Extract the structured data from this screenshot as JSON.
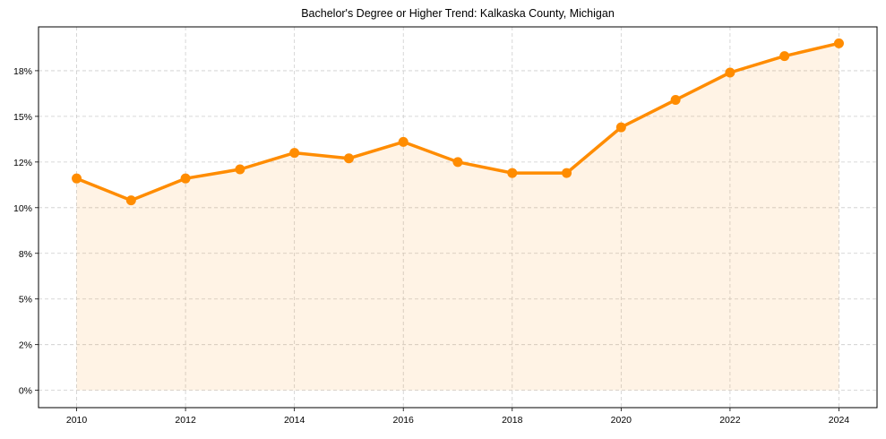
{
  "chart_data": {
    "type": "line",
    "title": "Bachelor's Degree or Higher Trend: Kalkaska County, Michigan",
    "xlabel": "",
    "ylabel": "",
    "x": [
      2010,
      2011,
      2012,
      2013,
      2014,
      2015,
      2016,
      2017,
      2018,
      2019,
      2020,
      2021,
      2022,
      2023,
      2024
    ],
    "series": [
      {
        "name": "Bachelor's Degree or Higher",
        "values": [
          11.6,
          10.4,
          11.6,
          12.1,
          13.0,
          12.7,
          13.6,
          12.5,
          11.9,
          11.9,
          14.4,
          15.9,
          17.4,
          18.3,
          19.0
        ],
        "color": "#ff8c00",
        "fill": "#ff8c00",
        "fill_alpha": 0.1,
        "marker": "circle"
      }
    ],
    "xticks": [
      2010,
      2012,
      2014,
      2016,
      2018,
      2020,
      2022,
      2024
    ],
    "yticks": [
      0,
      2.5,
      5,
      7.5,
      10,
      12.5,
      15,
      17.5
    ],
    "ytick_labels": [
      "0%",
      "2%",
      "5%",
      "8%",
      "10%",
      "12%",
      "15%",
      "18%"
    ],
    "xlim": [
      2009.3,
      2024.7
    ],
    "ylim": [
      -0.95,
      19.9
    ],
    "grid": true,
    "legend": null
  }
}
